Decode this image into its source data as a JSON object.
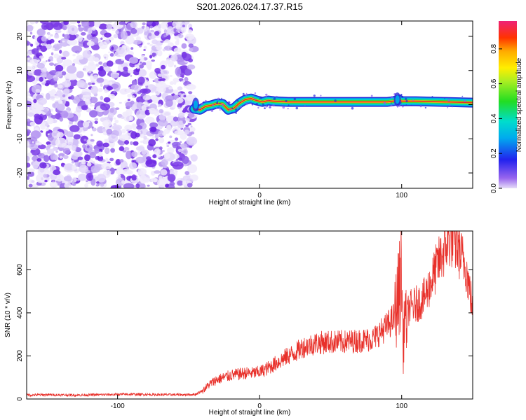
{
  "title": "S201.2026.024.17.37.R15",
  "chart_data": [
    {
      "type": "heatmap",
      "name": "spectrogram",
      "xlabel": "Height of straight line (km)",
      "ylabel": "Frequency (Hz)",
      "xlim": [
        -164,
        150
      ],
      "ylim": [
        -24.5,
        24.5
      ],
      "xticks": [
        -100,
        0,
        100
      ],
      "yticks": [
        -20,
        -10,
        0,
        10,
        20
      ],
      "noise_region_x": [
        -164,
        -46
      ],
      "signal": {
        "x": [
          -46,
          -42,
          -38,
          -34,
          -30,
          -26,
          -22,
          -18,
          -14,
          -10,
          -6,
          -2,
          2,
          6,
          10,
          20,
          40,
          60,
          80,
          90,
          94,
          96,
          98,
          100,
          110,
          130,
          150
        ],
        "freq": [
          -1.2,
          -1.5,
          -0.5,
          -0.2,
          0.3,
          0.2,
          -1.5,
          -1.0,
          0.5,
          1.5,
          1.8,
          1.2,
          0.8,
          1.2,
          1.0,
          0.8,
          0.8,
          0.8,
          0.8,
          0.8,
          1.0,
          1.2,
          1.5,
          1.0,
          1.0,
          0.8,
          0.6
        ]
      },
      "colorbar": {
        "label": "Normalized spectral amplitude",
        "ticks": [
          0.0,
          0.2,
          0.4,
          0.6,
          0.8
        ],
        "tick_labels": [
          "0.0",
          "0.2",
          "0.4",
          "0.6",
          "0.8"
        ],
        "range": [
          0,
          0.96
        ]
      }
    },
    {
      "type": "line",
      "name": "snr",
      "xlabel": "Height of straight line (km)",
      "ylabel": "SNR (10 * v/v)",
      "xlim": [
        -164,
        150
      ],
      "ylim": [
        0,
        780
      ],
      "xticks": [
        -100,
        0,
        100
      ],
      "yticks": [
        0,
        200,
        400,
        600
      ],
      "series": [
        {
          "name": "SNR",
          "color": "#e8302a",
          "x": [
            -164,
            -150,
            -130,
            -110,
            -90,
            -70,
            -50,
            -45,
            -40,
            -35,
            -30,
            -25,
            -20,
            -15,
            -10,
            -5,
            0,
            5,
            10,
            15,
            20,
            25,
            30,
            40,
            50,
            60,
            70,
            80,
            85,
            90,
            95,
            98,
            100,
            101,
            102,
            103,
            105,
            110,
            115,
            120,
            125,
            130,
            133,
            135,
            138,
            140,
            145,
            150
          ],
          "y": [
            18,
            20,
            18,
            20,
            22,
            20,
            20,
            22,
            40,
            70,
            90,
            100,
            110,
            115,
            120,
            120,
            125,
            140,
            160,
            180,
            200,
            215,
            240,
            260,
            265,
            265,
            270,
            280,
            310,
            340,
            380,
            500,
            600,
            180,
            420,
            350,
            420,
            440,
            460,
            530,
            620,
            690,
            740,
            745,
            720,
            690,
            620,
            420
          ]
        }
      ]
    }
  ]
}
